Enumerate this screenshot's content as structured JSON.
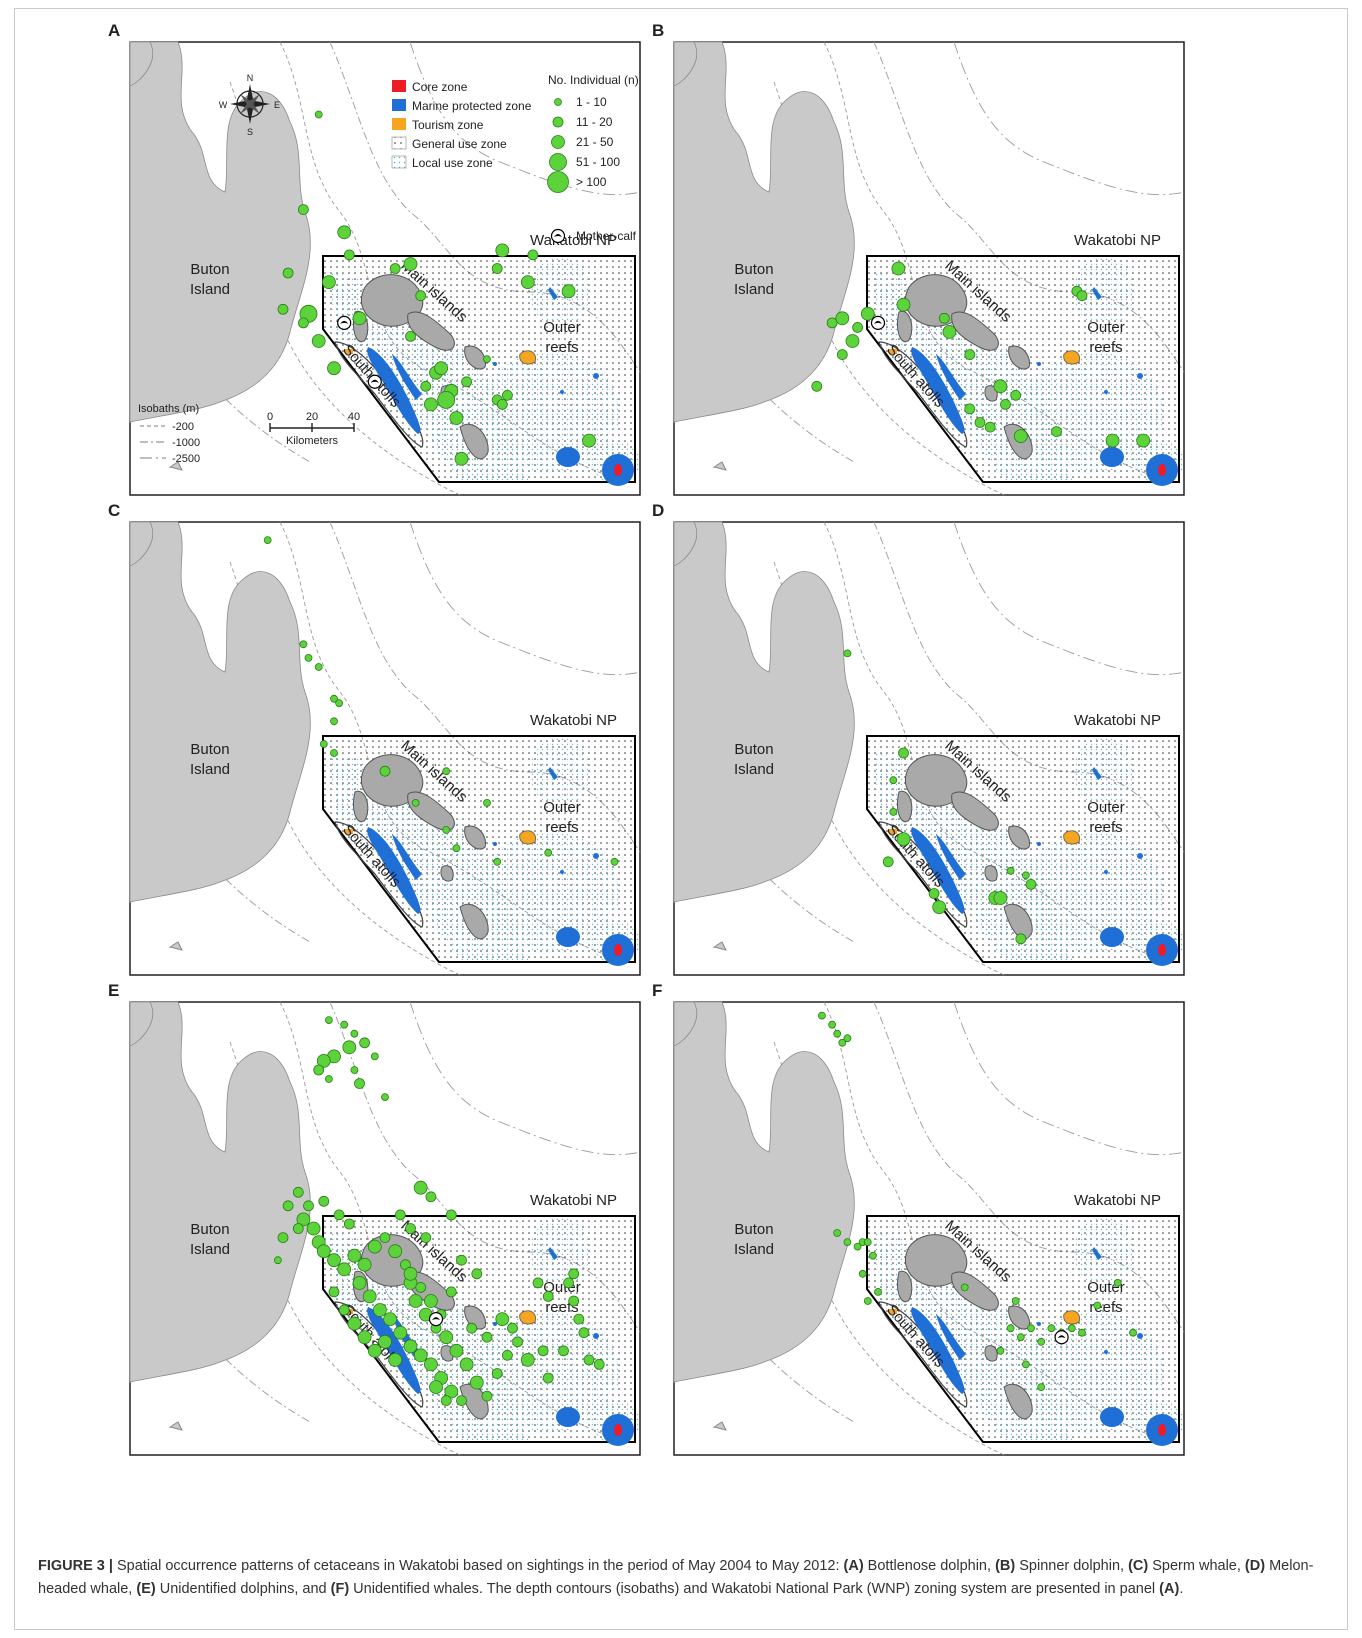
{
  "panels": [
    {
      "id": "A",
      "letter": "A",
      "has_legend": true,
      "has_compass": true,
      "has_scalebar": true,
      "sightings": [
        [
          0.37,
          0.16,
          1
        ],
        [
          0.34,
          0.37,
          2
        ],
        [
          0.43,
          0.47,
          2
        ],
        [
          0.42,
          0.42,
          3
        ],
        [
          0.39,
          0.53,
          3
        ],
        [
          0.35,
          0.6,
          4
        ],
        [
          0.34,
          0.62,
          2
        ],
        [
          0.37,
          0.66,
          3
        ],
        [
          0.4,
          0.72,
          3
        ],
        [
          0.52,
          0.5,
          2
        ],
        [
          0.55,
          0.49,
          3
        ],
        [
          0.57,
          0.56,
          2
        ],
        [
          0.6,
          0.73,
          3
        ],
        [
          0.61,
          0.72,
          3
        ],
        [
          0.63,
          0.77,
          3
        ],
        [
          0.64,
          0.83,
          3
        ],
        [
          0.62,
          0.79,
          4
        ],
        [
          0.58,
          0.76,
          2
        ],
        [
          0.66,
          0.75,
          2
        ],
        [
          0.65,
          0.92,
          3
        ],
        [
          0.72,
          0.79,
          2
        ],
        [
          0.73,
          0.8,
          2
        ],
        [
          0.74,
          0.78,
          2
        ],
        [
          0.73,
          0.46,
          3
        ],
        [
          0.72,
          0.5,
          2
        ],
        [
          0.78,
          0.53,
          3
        ],
        [
          0.79,
          0.47,
          2
        ],
        [
          0.86,
          0.55,
          3
        ],
        [
          0.9,
          0.88,
          3
        ],
        [
          0.31,
          0.51,
          2
        ],
        [
          0.3,
          0.59,
          2
        ],
        [
          0.45,
          0.61,
          3
        ],
        [
          0.55,
          0.65,
          2
        ],
        [
          0.59,
          0.8,
          3
        ],
        [
          0.7,
          0.7,
          1
        ]
      ],
      "mothers": [
        [
          0.42,
          0.62
        ],
        [
          0.48,
          0.75
        ]
      ]
    },
    {
      "id": "B",
      "letter": "B",
      "sightings": [
        [
          0.44,
          0.5,
          3
        ],
        [
          0.45,
          0.58,
          3
        ],
        [
          0.38,
          0.6,
          3
        ],
        [
          0.36,
          0.63,
          2
        ],
        [
          0.35,
          0.66,
          3
        ],
        [
          0.33,
          0.69,
          2
        ],
        [
          0.28,
          0.76,
          2
        ],
        [
          0.53,
          0.61,
          2
        ],
        [
          0.54,
          0.64,
          3
        ],
        [
          0.58,
          0.69,
          2
        ],
        [
          0.64,
          0.76,
          3
        ],
        [
          0.65,
          0.8,
          2
        ],
        [
          0.58,
          0.81,
          2
        ],
        [
          0.6,
          0.84,
          2
        ],
        [
          0.62,
          0.85,
          2
        ],
        [
          0.68,
          0.87,
          3
        ],
        [
          0.67,
          0.78,
          2
        ],
        [
          0.75,
          0.86,
          2
        ],
        [
          0.86,
          0.88,
          3
        ],
        [
          0.92,
          0.88,
          3
        ],
        [
          0.79,
          0.55,
          2
        ],
        [
          0.8,
          0.56,
          2
        ],
        [
          0.33,
          0.61,
          3
        ],
        [
          0.31,
          0.62,
          2
        ]
      ],
      "mothers": [
        [
          0.4,
          0.62
        ]
      ]
    },
    {
      "id": "C",
      "letter": "C",
      "sightings": [
        [
          0.27,
          0.04,
          1
        ],
        [
          0.34,
          0.27,
          1
        ],
        [
          0.35,
          0.3,
          1
        ],
        [
          0.37,
          0.32,
          1
        ],
        [
          0.4,
          0.39,
          1
        ],
        [
          0.41,
          0.4,
          1
        ],
        [
          0.4,
          0.44,
          1
        ],
        [
          0.38,
          0.49,
          1
        ],
        [
          0.4,
          0.51,
          1
        ],
        [
          0.5,
          0.55,
          2
        ],
        [
          0.56,
          0.62,
          1
        ],
        [
          0.62,
          0.68,
          1
        ],
        [
          0.64,
          0.72,
          1
        ],
        [
          0.72,
          0.75,
          1
        ],
        [
          0.82,
          0.73,
          1
        ],
        [
          0.95,
          0.75,
          1
        ],
        [
          0.62,
          0.55,
          1
        ],
        [
          0.7,
          0.62,
          1
        ]
      ],
      "mothers": []
    },
    {
      "id": "D",
      "letter": "D",
      "sightings": [
        [
          0.34,
          0.29,
          1
        ],
        [
          0.45,
          0.51,
          2
        ],
        [
          0.43,
          0.57,
          1
        ],
        [
          0.43,
          0.64,
          1
        ],
        [
          0.45,
          0.7,
          3
        ],
        [
          0.42,
          0.75,
          2
        ],
        [
          0.51,
          0.82,
          2
        ],
        [
          0.52,
          0.85,
          3
        ],
        [
          0.63,
          0.83,
          3
        ],
        [
          0.64,
          0.83,
          3
        ],
        [
          0.68,
          0.92,
          2
        ],
        [
          0.66,
          0.77,
          1
        ],
        [
          0.69,
          0.78,
          1
        ],
        [
          0.7,
          0.8,
          2
        ]
      ],
      "mothers": []
    },
    {
      "id": "E",
      "letter": "E",
      "sightings": [
        [
          0.39,
          0.04,
          1
        ],
        [
          0.42,
          0.05,
          1
        ],
        [
          0.44,
          0.07,
          1
        ],
        [
          0.46,
          0.09,
          2
        ],
        [
          0.43,
          0.1,
          3
        ],
        [
          0.4,
          0.12,
          3
        ],
        [
          0.38,
          0.13,
          3
        ],
        [
          0.37,
          0.15,
          2
        ],
        [
          0.39,
          0.17,
          1
        ],
        [
          0.44,
          0.15,
          1
        ],
        [
          0.48,
          0.12,
          1
        ],
        [
          0.45,
          0.18,
          2
        ],
        [
          0.5,
          0.21,
          1
        ],
        [
          0.57,
          0.41,
          3
        ],
        [
          0.59,
          0.43,
          2
        ],
        [
          0.63,
          0.47,
          2
        ],
        [
          0.35,
          0.45,
          2
        ],
        [
          0.34,
          0.48,
          3
        ],
        [
          0.36,
          0.5,
          3
        ],
        [
          0.37,
          0.53,
          3
        ],
        [
          0.38,
          0.55,
          3
        ],
        [
          0.4,
          0.57,
          3
        ],
        [
          0.42,
          0.59,
          3
        ],
        [
          0.44,
          0.56,
          3
        ],
        [
          0.46,
          0.58,
          3
        ],
        [
          0.48,
          0.54,
          3
        ],
        [
          0.5,
          0.52,
          2
        ],
        [
          0.52,
          0.55,
          3
        ],
        [
          0.54,
          0.58,
          2
        ],
        [
          0.55,
          0.62,
          3
        ],
        [
          0.56,
          0.66,
          3
        ],
        [
          0.58,
          0.69,
          3
        ],
        [
          0.6,
          0.72,
          2
        ],
        [
          0.62,
          0.74,
          3
        ],
        [
          0.64,
          0.77,
          3
        ],
        [
          0.66,
          0.8,
          3
        ],
        [
          0.68,
          0.84,
          3
        ],
        [
          0.7,
          0.87,
          2
        ],
        [
          0.72,
          0.82,
          2
        ],
        [
          0.74,
          0.78,
          2
        ],
        [
          0.76,
          0.75,
          2
        ],
        [
          0.78,
          0.79,
          3
        ],
        [
          0.81,
          0.77,
          2
        ],
        [
          0.82,
          0.83,
          2
        ],
        [
          0.8,
          0.62,
          2
        ],
        [
          0.82,
          0.65,
          2
        ],
        [
          0.86,
          0.62,
          2
        ],
        [
          0.88,
          0.7,
          2
        ],
        [
          0.89,
          0.73,
          2
        ],
        [
          0.85,
          0.77,
          2
        ],
        [
          0.9,
          0.79,
          2
        ],
        [
          0.92,
          0.8,
          2
        ],
        [
          0.87,
          0.6,
          2
        ],
        [
          0.45,
          0.62,
          3
        ],
        [
          0.47,
          0.65,
          3
        ],
        [
          0.49,
          0.68,
          3
        ],
        [
          0.51,
          0.7,
          3
        ],
        [
          0.53,
          0.73,
          3
        ],
        [
          0.55,
          0.76,
          3
        ],
        [
          0.57,
          0.78,
          3
        ],
        [
          0.59,
          0.8,
          3
        ],
        [
          0.61,
          0.83,
          3
        ],
        [
          0.63,
          0.86,
          3
        ],
        [
          0.65,
          0.88,
          2
        ],
        [
          0.5,
          0.75,
          3
        ],
        [
          0.52,
          0.79,
          3
        ],
        [
          0.4,
          0.64,
          2
        ],
        [
          0.42,
          0.68,
          2
        ],
        [
          0.44,
          0.71,
          3
        ],
        [
          0.46,
          0.74,
          3
        ],
        [
          0.48,
          0.77,
          3
        ],
        [
          0.55,
          0.6,
          3
        ],
        [
          0.57,
          0.63,
          2
        ],
        [
          0.59,
          0.66,
          3
        ],
        [
          0.61,
          0.69,
          2
        ],
        [
          0.63,
          0.64,
          2
        ],
        [
          0.6,
          0.85,
          3
        ],
        [
          0.62,
          0.88,
          2
        ],
        [
          0.7,
          0.74,
          2
        ],
        [
          0.73,
          0.7,
          3
        ],
        [
          0.75,
          0.72,
          2
        ],
        [
          0.67,
          0.72,
          2
        ],
        [
          0.43,
          0.49,
          2
        ],
        [
          0.41,
          0.47,
          2
        ],
        [
          0.38,
          0.44,
          2
        ],
        [
          0.33,
          0.5,
          2
        ],
        [
          0.3,
          0.52,
          2
        ],
        [
          0.29,
          0.57,
          1
        ],
        [
          0.31,
          0.45,
          2
        ],
        [
          0.33,
          0.42,
          2
        ],
        [
          0.65,
          0.57,
          2
        ],
        [
          0.68,
          0.6,
          2
        ],
        [
          0.58,
          0.52,
          2
        ],
        [
          0.53,
          0.47,
          2
        ],
        [
          0.55,
          0.5,
          2
        ],
        [
          0.87,
          0.66,
          2
        ]
      ],
      "mothers": [
        [
          0.6,
          0.7
        ]
      ]
    },
    {
      "id": "F",
      "letter": "F",
      "sightings": [
        [
          0.29,
          0.03,
          1
        ],
        [
          0.31,
          0.05,
          1
        ],
        [
          0.32,
          0.07,
          1
        ],
        [
          0.33,
          0.09,
          1
        ],
        [
          0.34,
          0.08,
          1
        ],
        [
          0.32,
          0.51,
          1
        ],
        [
          0.34,
          0.53,
          1
        ],
        [
          0.36,
          0.54,
          1
        ],
        [
          0.37,
          0.53,
          1
        ],
        [
          0.38,
          0.53,
          1
        ],
        [
          0.39,
          0.56,
          1
        ],
        [
          0.37,
          0.6,
          1
        ],
        [
          0.4,
          0.64,
          1
        ],
        [
          0.38,
          0.66,
          1
        ],
        [
          0.57,
          0.63,
          1
        ],
        [
          0.66,
          0.72,
          1
        ],
        [
          0.68,
          0.74,
          1
        ],
        [
          0.7,
          0.72,
          1
        ],
        [
          0.72,
          0.75,
          1
        ],
        [
          0.74,
          0.72,
          1
        ],
        [
          0.76,
          0.73,
          1
        ],
        [
          0.78,
          0.72,
          1
        ],
        [
          0.8,
          0.73,
          1
        ],
        [
          0.83,
          0.67,
          1
        ],
        [
          0.87,
          0.62,
          1
        ],
        [
          0.9,
          0.73,
          1
        ],
        [
          0.72,
          0.85,
          1
        ],
        [
          0.69,
          0.8,
          1
        ],
        [
          0.64,
          0.77,
          1
        ],
        [
          0.67,
          0.66,
          1
        ]
      ],
      "mothers": [
        [
          0.76,
          0.74
        ]
      ]
    }
  ],
  "map_labels": {
    "buton_line1": "Buton",
    "buton_line2": "Island",
    "main_islands": "Main islands",
    "south_atolls": "South atolls",
    "outer_line1": "Outer",
    "outer_line2": "reefs",
    "park": "Wakatobi NP"
  },
  "legend": {
    "zones": [
      {
        "label": "Core zone",
        "color": "#ee1c24",
        "kind": "fill"
      },
      {
        "label": "Marine protected zone",
        "color": "#1f6fd6",
        "kind": "fill"
      },
      {
        "label": "Tourism zone",
        "color": "#f7a520",
        "kind": "fill"
      },
      {
        "label": "General use zone",
        "color": "#333333",
        "kind": "dots"
      },
      {
        "label": "Local use zone",
        "color": "#4fb3d9",
        "kind": "dots"
      }
    ],
    "size_title": "No. Individual (n)",
    "size_classes": [
      "1 - 10",
      "11 - 20",
      "21 - 50",
      "51 - 100",
      "> 100"
    ],
    "mother_calf": "Mother-calf",
    "isobath_title": "Isobaths (m)",
    "isobaths": [
      "-200",
      "-1000",
      "-2500"
    ],
    "scale_ticks": [
      "0",
      "20",
      "40"
    ],
    "scale_unit": "Kilometers",
    "compass": {
      "n": "N",
      "s": "S",
      "e": "E",
      "w": "W"
    }
  },
  "colors": {
    "land": "#c9c9c9",
    "land_stroke": "#8a8a8a",
    "sighting": "#5cd33a",
    "sighting_stroke": "#2d7d1a",
    "park_border": "#000000"
  },
  "caption": {
    "lead": "FIGURE 3 |",
    "text_1": " Spatial occurrence patterns of cetaceans in Wakatobi based on sightings in the period of May 2004 to May 2012: ",
    "a_tag": "(A)",
    "a_text": " Bottlenose dolphin, ",
    "b_tag": "(B)",
    "b_text": " Spinner dolphin, ",
    "c_tag": "(C)",
    "c_text": " Sperm whale, ",
    "d_tag": "(D)",
    "d_text": " Melon-headed whale, ",
    "e_tag": "(E)",
    "e_text": " Unidentified dolphins, and ",
    "f_tag": "(F)",
    "f_text": " Unidentified whales. The depth contours (isobaths) and Wakatobi National Park (WNP) zoning system are presented in panel ",
    "end_tag": "(A)",
    "end_text": "."
  }
}
